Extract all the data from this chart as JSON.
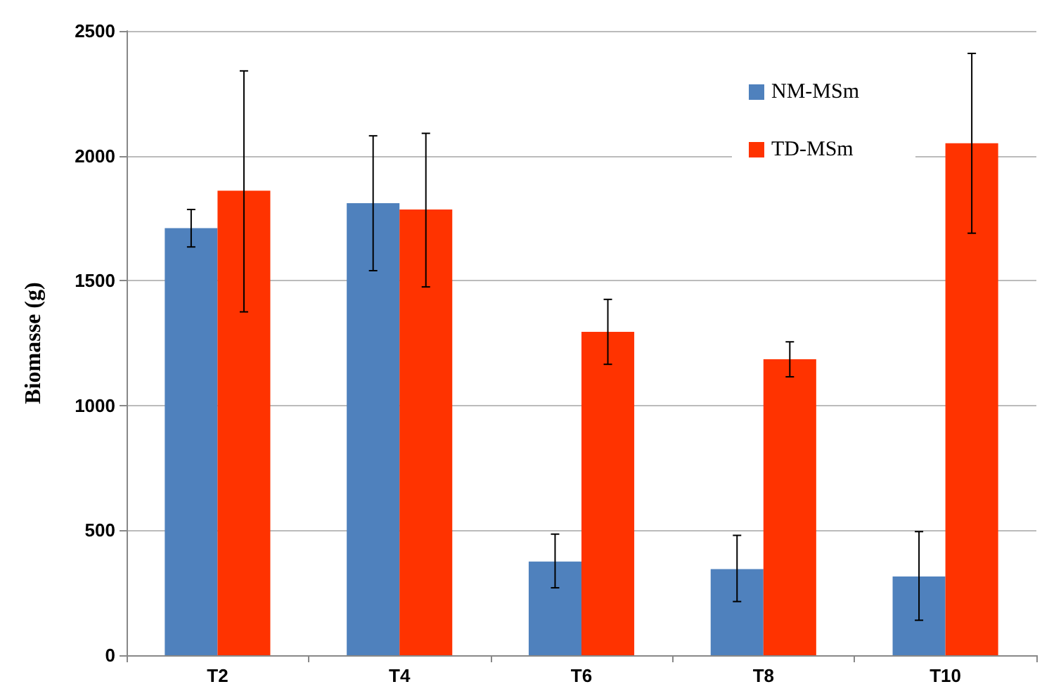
{
  "chart_data": {
    "type": "bar",
    "ylabel": "Biomasse (g)",
    "categories": [
      "T2",
      "T4",
      "T6",
      "T8",
      "T10"
    ],
    "series": [
      {
        "name": "NM-MSm",
        "color": "#4f81bd",
        "values": [
          1710,
          1810,
          375,
          345,
          315
        ],
        "errors": [
          [
            1635,
            1785
          ],
          [
            1540,
            2080
          ],
          [
            270,
            485
          ],
          [
            215,
            480
          ],
          [
            140,
            495
          ]
        ]
      },
      {
        "name": "TD-MSm",
        "color": "#ff3300",
        "values": [
          1860,
          1785,
          1295,
          1185,
          2050
        ],
        "errors": [
          [
            1375,
            2340
          ],
          [
            1475,
            2090
          ],
          [
            1165,
            1425
          ],
          [
            1115,
            1255
          ],
          [
            1690,
            2410
          ]
        ]
      }
    ],
    "ylim": [
      0,
      2500
    ],
    "yticks": [
      0,
      500,
      1000,
      1500,
      2000,
      2500
    ],
    "grid": "y",
    "legend": "top right"
  }
}
